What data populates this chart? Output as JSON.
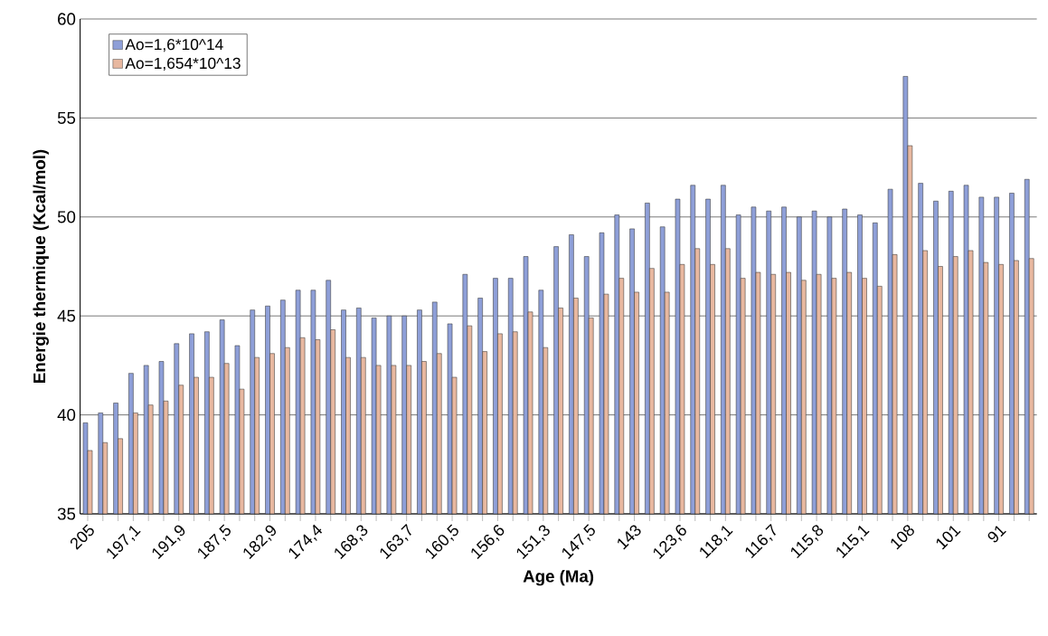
{
  "chart_data": {
    "type": "bar",
    "xlabel": "Age (Ma)",
    "ylabel": "Energie thermique (Kcal/mol)",
    "categories": [
      "205",
      null,
      null,
      "197,1",
      null,
      null,
      "191,9",
      null,
      null,
      "187,5",
      null,
      null,
      "182,9",
      null,
      null,
      "174,4",
      null,
      null,
      "168,3",
      null,
      null,
      "163,7",
      null,
      null,
      "160,5",
      null,
      null,
      "156,6",
      null,
      null,
      "151,3",
      null,
      null,
      "147,5",
      null,
      null,
      "143",
      null,
      null,
      "123,6",
      null,
      null,
      "118,1",
      null,
      null,
      "116,7",
      null,
      null,
      "115,8",
      null,
      null,
      "115,1",
      null,
      null,
      "108",
      null,
      null,
      "101",
      null,
      null,
      "91",
      null,
      null
    ],
    "series": [
      {
        "name": "Ao=1,6*10^14",
        "color": "#8e9fd8",
        "values": [
          39.6,
          40.1,
          40.6,
          42.1,
          42.5,
          42.7,
          43.6,
          44.1,
          44.2,
          44.8,
          43.5,
          45.3,
          45.5,
          45.8,
          46.3,
          46.3,
          46.8,
          45.3,
          45.4,
          44.9,
          45.0,
          45.0,
          45.3,
          45.7,
          44.6,
          47.1,
          45.9,
          46.9,
          46.9,
          48.0,
          46.3,
          48.5,
          49.1,
          48.0,
          49.2,
          50.1,
          49.4,
          50.7,
          49.5,
          50.9,
          51.6,
          50.9,
          51.6,
          50.1,
          50.5,
          50.3,
          50.5,
          50.0,
          50.3,
          50.0,
          50.4,
          50.1,
          49.7,
          51.4,
          57.1,
          51.7,
          50.8,
          51.3,
          51.6,
          51.0,
          51.0,
          51.2,
          51.9
        ]
      },
      {
        "name": "Ao=1,654*10^13",
        "color": "#e8b8a0",
        "values": [
          38.2,
          38.6,
          38.8,
          40.1,
          40.5,
          40.7,
          41.5,
          41.9,
          41.9,
          42.6,
          41.3,
          42.9,
          43.1,
          43.4,
          43.9,
          43.8,
          44.3,
          42.9,
          42.9,
          42.5,
          42.5,
          42.5,
          42.7,
          43.1,
          41.9,
          44.5,
          43.2,
          44.1,
          44.2,
          45.2,
          43.4,
          45.4,
          45.9,
          44.9,
          46.1,
          46.9,
          46.2,
          47.4,
          46.2,
          47.6,
          48.4,
          47.6,
          48.4,
          46.9,
          47.2,
          47.1,
          47.2,
          46.8,
          47.1,
          46.9,
          47.2,
          46.9,
          46.5,
          48.1,
          53.6,
          48.3,
          47.5,
          48.0,
          48.3,
          47.7,
          47.6,
          47.8,
          47.9
        ]
      }
    ],
    "ylim": [
      35,
      60
    ],
    "yticks": [
      35,
      40,
      45,
      50,
      55,
      60
    ],
    "grid": "y",
    "legend": "top left"
  }
}
